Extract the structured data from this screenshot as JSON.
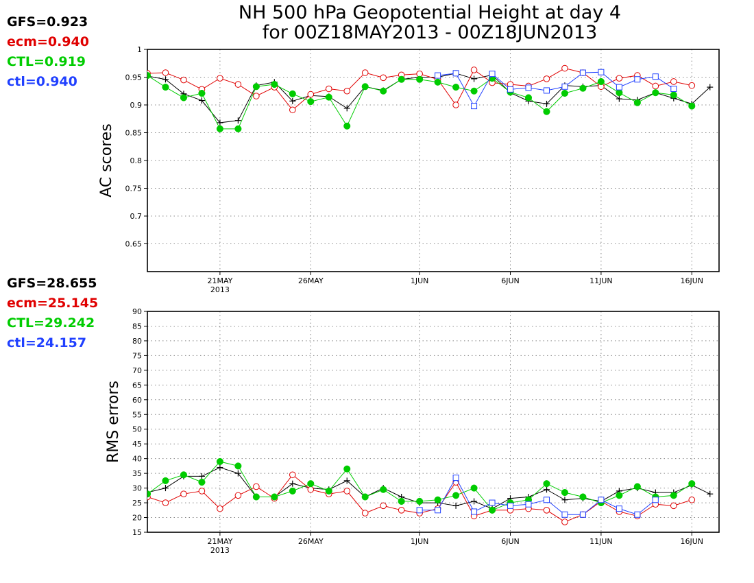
{
  "title": {
    "line1": "NH 500 hPa Geopotential Height at day 4",
    "line2": "for 00Z18MAY2013 - 00Z18JUN2013"
  },
  "colors": {
    "GFS": "#000000",
    "ecm": "#e00000",
    "CTL": "#00cc00",
    "ctl": "#2040ff"
  },
  "chart_data": [
    {
      "type": "line",
      "ylabel": "AC scores",
      "ylim": [
        0.6,
        1.0
      ],
      "yticks": [
        0.65,
        0.7,
        0.75,
        0.8,
        0.85,
        0.9,
        0.95,
        1
      ],
      "ytick_labels": [
        "0.65",
        "0.7",
        "0.75",
        "0.8",
        "0.85",
        "0.9",
        "0.95",
        "1"
      ],
      "xlim": [
        17,
        48.5
      ],
      "xticks": [
        {
          "x": 21,
          "label": "21MAY",
          "sub": "2013"
        },
        {
          "x": 26,
          "label": "26MAY",
          "sub": ""
        },
        {
          "x": 32,
          "label": "1JUN",
          "sub": ""
        },
        {
          "x": 37,
          "label": "6JUN",
          "sub": ""
        },
        {
          "x": 42,
          "label": "11JUN",
          "sub": ""
        },
        {
          "x": 47,
          "label": "16JUN",
          "sub": ""
        }
      ],
      "grid": true,
      "scores": [
        {
          "key": "GFS",
          "text": "GFS=0.923"
        },
        {
          "key": "ecm",
          "text": "ecm=0.940"
        },
        {
          "key": "CTL",
          "text": "CTL=0.919"
        },
        {
          "key": "ctl",
          "text": "ctl=0.940"
        }
      ],
      "series": [
        {
          "key": "GFS",
          "marker": "plus",
          "start": 17,
          "values": [
            0.952,
            0.946,
            0.92,
            0.908,
            0.868,
            0.872,
            0.935,
            0.941,
            0.907,
            0.917,
            0.915,
            0.894,
            0.933,
            0.926,
            0.946,
            0.95,
            0.95,
            0.957,
            0.947,
            0.954,
            0.922,
            0.907,
            0.902,
            0.935,
            0.933,
            0.935,
            0.911,
            0.909,
            0.922,
            0.912,
            0.902,
            0.932
          ]
        },
        {
          "key": "ecm",
          "marker": "circle",
          "start": 17,
          "values": [
            0.957,
            0.958,
            0.945,
            0.928,
            0.948,
            0.937,
            0.916,
            0.932,
            0.891,
            0.919,
            0.929,
            0.925,
            0.958,
            0.949,
            0.954,
            0.956,
            0.946,
            0.9,
            0.963,
            0.94,
            0.937,
            0.934,
            0.947,
            0.966,
            0.958,
            0.933,
            0.948,
            0.953,
            0.934,
            0.942,
            0.935
          ]
        },
        {
          "key": "CTL",
          "marker": "filled",
          "start": 17,
          "values": [
            0.953,
            0.932,
            0.913,
            0.921,
            0.857,
            0.857,
            0.933,
            0.937,
            0.92,
            0.906,
            0.914,
            0.862,
            0.933,
            0.925,
            0.946,
            0.946,
            0.941,
            0.932,
            0.925,
            0.948,
            0.923,
            0.913,
            0.888,
            0.921,
            0.93,
            0.942,
            0.922,
            0.904,
            0.922,
            0.918,
            0.898
          ]
        },
        {
          "key": "ctl",
          "marker": "square",
          "start": 33,
          "values": [
            0.953,
            0.957,
            0.898,
            0.956,
            0.928,
            0.931,
            0.926,
            0.933,
            0.958,
            0.959,
            0.932,
            0.946,
            0.951,
            0.929
          ]
        }
      ]
    },
    {
      "type": "line",
      "ylabel": "RMS errors",
      "ylim": [
        15,
        90
      ],
      "yticks": [
        15,
        20,
        25,
        30,
        35,
        40,
        45,
        50,
        55,
        60,
        65,
        70,
        75,
        80,
        85,
        90
      ],
      "ytick_labels": [
        "15",
        "20",
        "25",
        "30",
        "35",
        "40",
        "45",
        "50",
        "55",
        "60",
        "65",
        "70",
        "75",
        "80",
        "85",
        "90"
      ],
      "xlim": [
        17,
        48.5
      ],
      "xticks": [
        {
          "x": 21,
          "label": "21MAY",
          "sub": "2013"
        },
        {
          "x": 26,
          "label": "26MAY",
          "sub": ""
        },
        {
          "x": 32,
          "label": "1JUN",
          "sub": ""
        },
        {
          "x": 37,
          "label": "6JUN",
          "sub": ""
        },
        {
          "x": 42,
          "label": "11JUN",
          "sub": ""
        },
        {
          "x": 47,
          "label": "16JUN",
          "sub": ""
        }
      ],
      "grid": true,
      "scores": [
        {
          "key": "GFS",
          "text": "GFS=28.655"
        },
        {
          "key": "ecm",
          "text": "ecm=25.145"
        },
        {
          "key": "CTL",
          "text": "CTL=29.242"
        },
        {
          "key": "ctl",
          "text": "ctl=24.157"
        }
      ],
      "series": [
        {
          "key": "GFS",
          "marker": "plus",
          "start": 17,
          "values": [
            28.5,
            30,
            34,
            34,
            37,
            35,
            27,
            27,
            31.5,
            30,
            29.5,
            32.5,
            27,
            30,
            27,
            25,
            25,
            24,
            25.5,
            23,
            26.5,
            27,
            29.5,
            26,
            26.5,
            25.5,
            29,
            30,
            28.5,
            28.5,
            31,
            28
          ]
        },
        {
          "key": "ecm",
          "marker": "circle",
          "start": 17,
          "values": [
            27,
            25,
            28,
            29,
            23,
            27.5,
            30.5,
            26.5,
            34.5,
            29.5,
            28,
            29,
            21.5,
            24,
            22.5,
            21.5,
            23,
            32,
            20.5,
            22.5,
            22.5,
            23,
            22.5,
            18.5,
            21,
            25.5,
            22,
            20.5,
            24.5,
            24,
            26
          ]
        },
        {
          "key": "CTL",
          "marker": "filled",
          "start": 17,
          "values": [
            28,
            32.5,
            34.5,
            32,
            39,
            37.5,
            27,
            27,
            29,
            31.5,
            29,
            36.5,
            27,
            29.5,
            25.5,
            25.5,
            26,
            27.5,
            30,
            22.5,
            25,
            26,
            31.5,
            28.5,
            27,
            25,
            27.5,
            30.5,
            27,
            27.5,
            31.5
          ]
        },
        {
          "key": "ctl",
          "marker": "square",
          "start": 32,
          "values": [
            22.5,
            22.5,
            33.5,
            22,
            25,
            24,
            24.5,
            26,
            21,
            21,
            26,
            23,
            21,
            26
          ]
        }
      ]
    }
  ]
}
